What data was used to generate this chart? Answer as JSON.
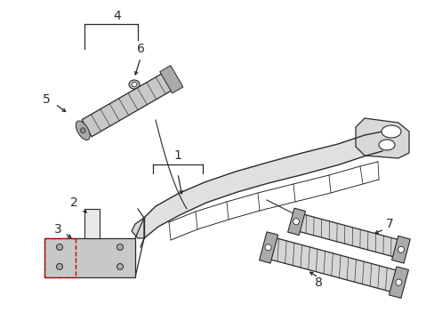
{
  "bg_color": "#ffffff",
  "line_color": "#2a2a2a",
  "light_gray": "#c8c8c8",
  "mid_gray": "#aaaaaa",
  "dark_gray": "#888888",
  "red_dash": "#cc0000",
  "fig_width": 4.89,
  "fig_height": 3.6,
  "dpi": 100,
  "xlim": [
    0,
    489
  ],
  "ylim": [
    0,
    360
  ]
}
